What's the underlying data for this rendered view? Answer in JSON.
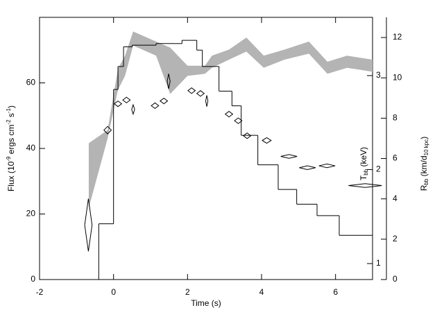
{
  "chart_data": {
    "type": "multi-axis",
    "xlabel": "Time (s)",
    "ylabel": [
      "Flux (10",
      "-9",
      " ergs cm",
      "-2",
      " s",
      "-1",
      ")"
    ],
    "ylabel_script": "super",
    "y2label": [
      "T",
      "bb",
      " (keV)"
    ],
    "y2label_script": "sub",
    "y3label": [
      "R",
      "bb",
      " (km/d",
      "10 kpc",
      ")"
    ],
    "y3label_script": "sub",
    "xlim": [
      -2,
      7
    ],
    "xticks": [
      -2,
      0,
      2,
      4,
      6
    ],
    "ylim": [
      0,
      80
    ],
    "yticks": [
      0,
      20,
      40,
      60
    ],
    "y2lim": [
      0.83,
      3.62
    ],
    "y2ticks": [
      1,
      2,
      3
    ],
    "y3lim": [
      0,
      13
    ],
    "y3ticks": [
      0,
      2,
      4,
      6,
      8,
      10,
      12
    ],
    "series": [
      {
        "type": "step",
        "axis": "y",
        "color": "#000000",
        "bins": [
          -0.63,
          -0.4,
          0,
          0.12,
          0.27,
          0.5,
          1.15,
          1.6,
          1.85,
          2.25,
          2.4,
          2.85,
          3.2,
          3.45,
          3.9,
          4.45,
          4.95,
          5.5,
          6.1,
          7
        ],
        "values": [
          0,
          17,
          58,
          65,
          71,
          71.5,
          72,
          72,
          73,
          70,
          65,
          57.5,
          53,
          44,
          35,
          27.5,
          23,
          19.5,
          13.5
        ]
      },
      {
        "type": "diamond",
        "axis": "y2",
        "color": "#000000",
        "x": [
          -0.68,
          -0.16,
          0.12,
          0.35,
          0.53,
          1.12,
          1.36,
          1.49,
          2.11,
          2.35,
          2.52,
          3.12,
          3.37,
          3.61,
          4.14,
          4.74,
          5.24,
          5.77,
          6.8
        ],
        "xerr": [
          0.1,
          0.1,
          0.1,
          0.1,
          0.04,
          0.1,
          0.1,
          0.04,
          0.1,
          0.1,
          0.03,
          0.1,
          0.1,
          0.1,
          0.12,
          0.22,
          0.22,
          0.22,
          0.45
        ],
        "values": [
          1.41,
          2.42,
          2.7,
          2.74,
          2.64,
          2.68,
          2.73,
          2.94,
          2.84,
          2.81,
          2.73,
          2.59,
          2.52,
          2.36,
          2.31,
          2.14,
          2.02,
          2.04,
          1.83
        ],
        "yerr": [
          0.28,
          0.04,
          0.03,
          0.03,
          0.05,
          0.03,
          0.03,
          0.08,
          0.03,
          0.03,
          0.06,
          0.03,
          0.03,
          0.03,
          0.03,
          0.02,
          0.02,
          0.02,
          0.02
        ]
      },
      {
        "type": "band",
        "axis": "y3",
        "color": "#b4b4b4",
        "x": [
          -0.67,
          -0.16,
          0.12,
          0.31,
          0.53,
          1.15,
          1.53,
          2.0,
          2.47,
          2.66,
          3.12,
          3.59,
          4.06,
          4.62,
          5.28,
          5.78,
          6.31,
          7.0
        ],
        "upper": [
          6.76,
          7.41,
          10.45,
          11.1,
          12.3,
          11.8,
          11.5,
          10.6,
          10.6,
          11.1,
          11.4,
          12.0,
          11.1,
          11.4,
          11.8,
          10.8,
          11.1,
          10.9
        ],
        "lower": [
          3.55,
          7.0,
          9.41,
          10.1,
          11.6,
          11.1,
          9.2,
          10.1,
          10.2,
          10.5,
          10.9,
          11.3,
          10.5,
          10.9,
          11.2,
          10.2,
          10.5,
          10.3
        ]
      }
    ]
  }
}
